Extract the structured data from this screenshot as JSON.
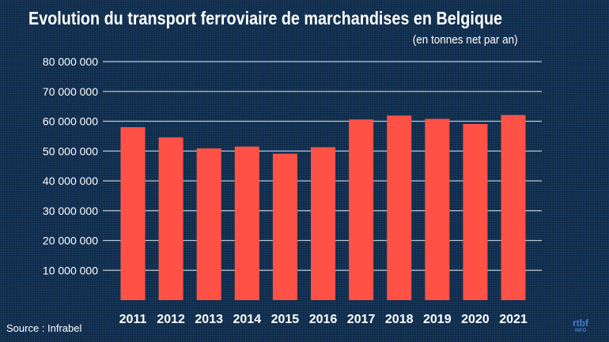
{
  "chart_data": {
    "type": "bar",
    "title": "Evolution du transport ferroviaire de marchandises en Belgique",
    "subtitle": "(en tonnes net par an)",
    "categories": [
      "2011",
      "2012",
      "2013",
      "2014",
      "2015",
      "2016",
      "2017",
      "2018",
      "2019",
      "2020",
      "2021"
    ],
    "values": [
      58000000,
      54600000,
      50900000,
      51500000,
      49100000,
      51300000,
      60600000,
      61900000,
      60800000,
      59100000,
      62100000
    ],
    "ylim": [
      0,
      80000000
    ],
    "yticks": [
      10000000,
      20000000,
      30000000,
      40000000,
      50000000,
      60000000,
      70000000,
      80000000
    ],
    "ytick_labels": [
      "10 000 000",
      "20 000 000",
      "30 000 000",
      "40 000 000",
      "50 000 000",
      "60 000 000",
      "70 000 000",
      "80 000 000"
    ],
    "grid": true,
    "bar_color": "#ff5145",
    "background_color": "#0f2a47"
  },
  "source": "Source : Infrabel",
  "logo": {
    "main": "rtbf",
    "sub": "INFO"
  }
}
